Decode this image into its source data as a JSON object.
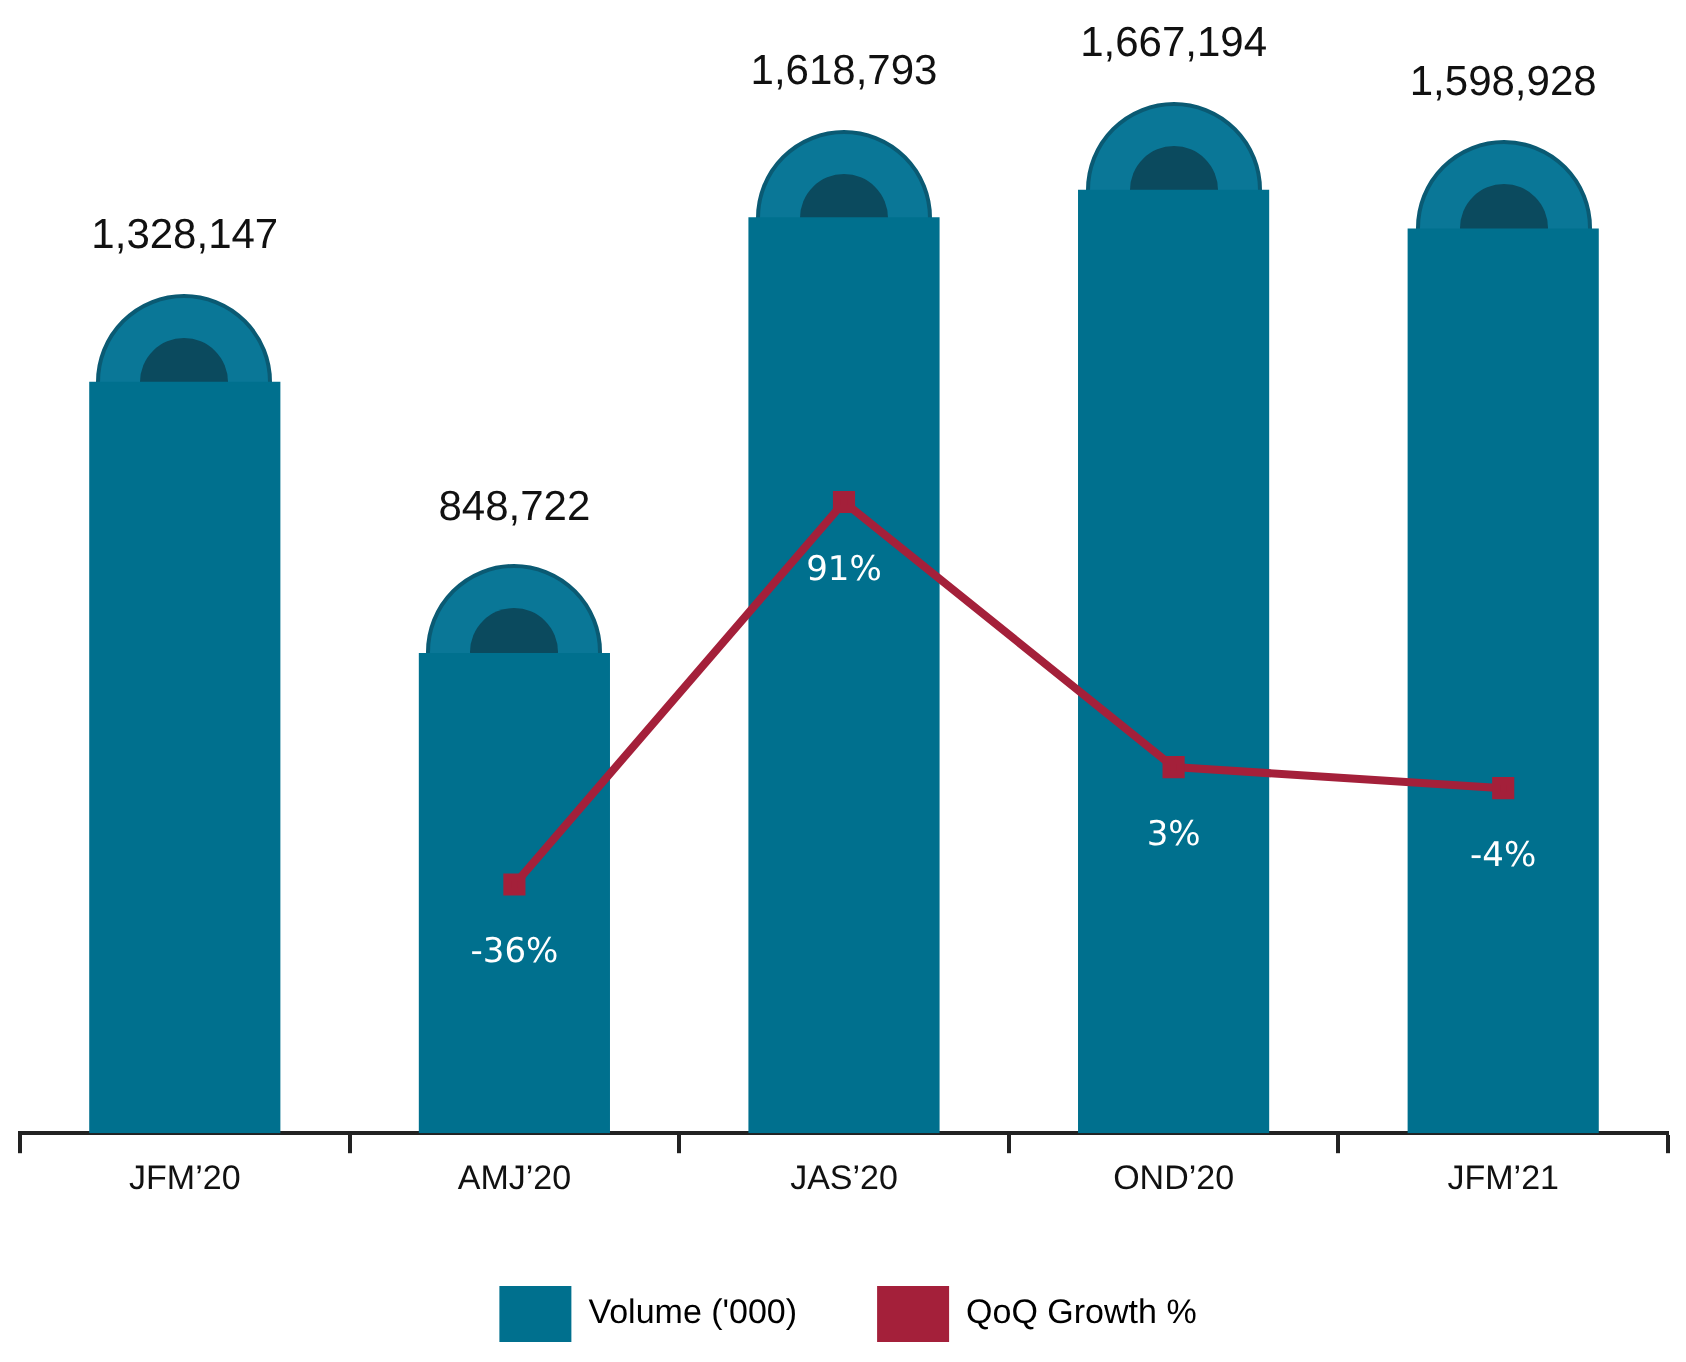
{
  "chart_data": {
    "type": "bar",
    "categories": [
      "JFM’20",
      "AMJ’20",
      "JAS’20",
      "OND’20",
      "JFM’21"
    ],
    "series": [
      {
        "name": "Volume ('000)",
        "color": "#00708e",
        "values": [
          1328147,
          848722,
          1618793,
          1667194,
          1598928
        ],
        "value_labels": [
          "1,328,147",
          "848,722",
          "1,618,793",
          "1,667,194",
          "1,598,928"
        ]
      },
      {
        "name": "QoQ Growth %",
        "type": "line",
        "axis": "y2",
        "color": "#a4203a",
        "marker": "square",
        "values": [
          null,
          -36,
          91,
          3,
          -4
        ],
        "value_labels": [
          null,
          "-36%",
          "91%",
          "3%",
          "-4%"
        ]
      }
    ],
    "legend": "bottom",
    "tick_labels": "x"
  }
}
